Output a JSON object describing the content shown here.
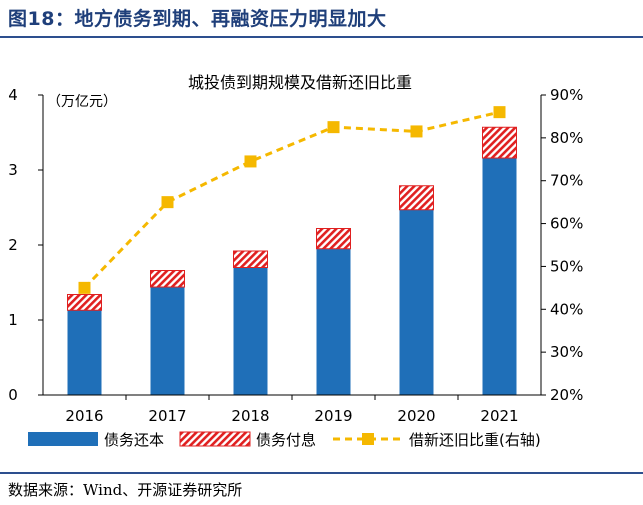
{
  "figure": {
    "title": "图18：地方债务到期、再融资压力明显加大",
    "source": "数据来源：Wind、开源证券研究所"
  },
  "chart_data": {
    "type": "bar",
    "stacked": true,
    "title": "城投债到期规模及借新还旧比重",
    "y_unit_label": "（万亿元）",
    "categories": [
      "2016",
      "2017",
      "2018",
      "2019",
      "2020",
      "2021"
    ],
    "ylim": [
      0,
      4
    ],
    "yticks": [
      "0",
      "1",
      "2",
      "3",
      "4"
    ],
    "y2lim": [
      20,
      90
    ],
    "y2ticks": [
      "20%",
      "30%",
      "40%",
      "50%",
      "60%",
      "70%",
      "80%",
      "90%"
    ],
    "series": [
      {
        "name": "债务还本",
        "kind": "bar",
        "color": "#1f6fb8",
        "values": [
          1.13,
          1.44,
          1.7,
          1.95,
          2.47,
          3.16
        ]
      },
      {
        "name": "债务付息",
        "kind": "bar-hatched",
        "color": "#e02020",
        "values": [
          0.21,
          0.22,
          0.22,
          0.27,
          0.32,
          0.41
        ]
      },
      {
        "name": "借新还旧比重(右轴)",
        "kind": "line",
        "axis": "right",
        "color": "#f5b800",
        "values": [
          45,
          65,
          74.5,
          82.5,
          81.5,
          86
        ]
      }
    ]
  }
}
